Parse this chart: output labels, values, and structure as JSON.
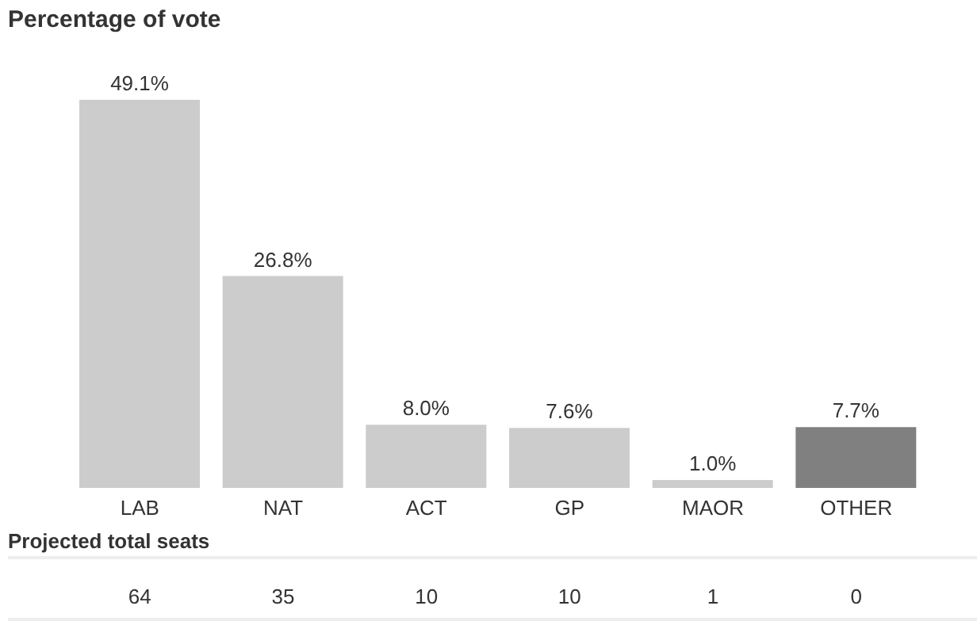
{
  "chart_data": [
    {
      "type": "bar",
      "title": "Percentage of vote",
      "categories": [
        "LAB",
        "NAT",
        "ACT",
        "GP",
        "MAOR",
        "OTHER"
      ],
      "values": [
        49.1,
        26.8,
        8.0,
        7.6,
        1.0,
        7.7
      ],
      "colors": [
        "#cccccc",
        "#cccccc",
        "#cccccc",
        "#cccccc",
        "#cccccc",
        "#808080"
      ],
      "value_labels": [
        "49.1%",
        "26.8%",
        "8.0%",
        "7.6%",
        "1.0%",
        "7.7%"
      ],
      "tick_labels": "x"
    },
    {
      "type": "other",
      "title": "Projected total seats",
      "categories": [
        null,
        null,
        null,
        null,
        null,
        null
      ],
      "values": [
        64,
        35,
        10,
        10,
        1,
        0
      ],
      "data_labels": true
    }
  ]
}
